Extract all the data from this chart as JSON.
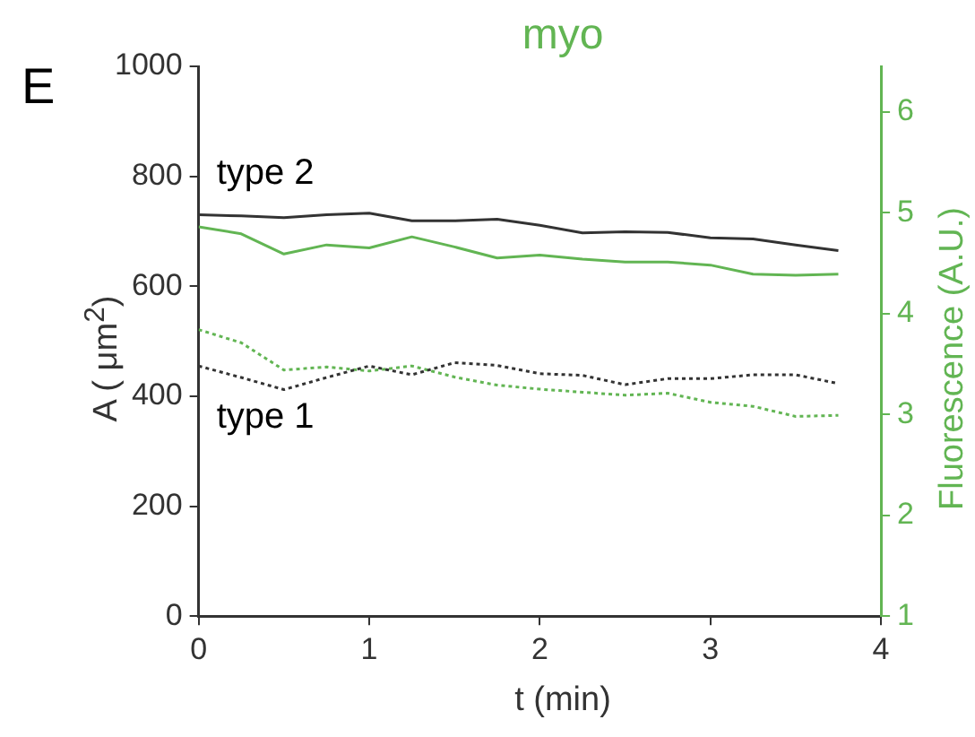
{
  "chart_data": {
    "type": "line",
    "title": "myo",
    "xlabel": "t (min)",
    "ylabel": "A ( μm$^{2}$)",
    "y2label": "Fluorescence (A.U.)",
    "x": [
      0,
      0.25,
      0.5,
      0.75,
      1,
      1.25,
      1.5,
      1.75,
      2,
      2.25,
      2.5,
      2.75,
      3,
      3.25,
      3.5,
      3.75
    ],
    "series": [
      {
        "color": "#333333",
        "line_style": "solid",
        "values": [
          730,
          728,
          725,
          730,
          733,
          719,
          719,
          722,
          711,
          697,
          699,
          698,
          688,
          686,
          675,
          665
        ]
      },
      {
        "color": "#62b553",
        "line_style": "solid",
        "axis": "y2",
        "values": [
          4.86,
          4.79,
          4.59,
          4.68,
          4.65,
          4.76,
          4.66,
          4.55,
          4.58,
          4.54,
          4.51,
          4.51,
          4.48,
          4.39,
          4.38,
          4.39
        ]
      },
      {
        "color": "#333333",
        "line_style": "dotted",
        "values": [
          455,
          434,
          412,
          434,
          455,
          439,
          461,
          456,
          441,
          438,
          421,
          432,
          432,
          439,
          439,
          423
        ]
      },
      {
        "color": "#62b553",
        "line_style": "dotted",
        "axis": "y2",
        "values": [
          3.84,
          3.71,
          3.44,
          3.47,
          3.43,
          3.48,
          3.37,
          3.29,
          3.25,
          3.22,
          3.19,
          3.21,
          3.12,
          3.08,
          2.98,
          2.99
        ]
      }
    ],
    "xlim": [
      0,
      4
    ],
    "xticks": [
      0,
      1,
      2,
      3,
      4
    ],
    "ylim": [
      0,
      1000
    ],
    "yticks": [
      0,
      200,
      400,
      600,
      800,
      1000
    ],
    "y2lim": [
      1,
      6.45
    ],
    "y2ticks": [
      1,
      2,
      3,
      4,
      5,
      6
    ],
    "annotations": [
      "E",
      "type 2",
      "type 1"
    ],
    "grid": false,
    "legend": false,
    "marker": "none"
  }
}
